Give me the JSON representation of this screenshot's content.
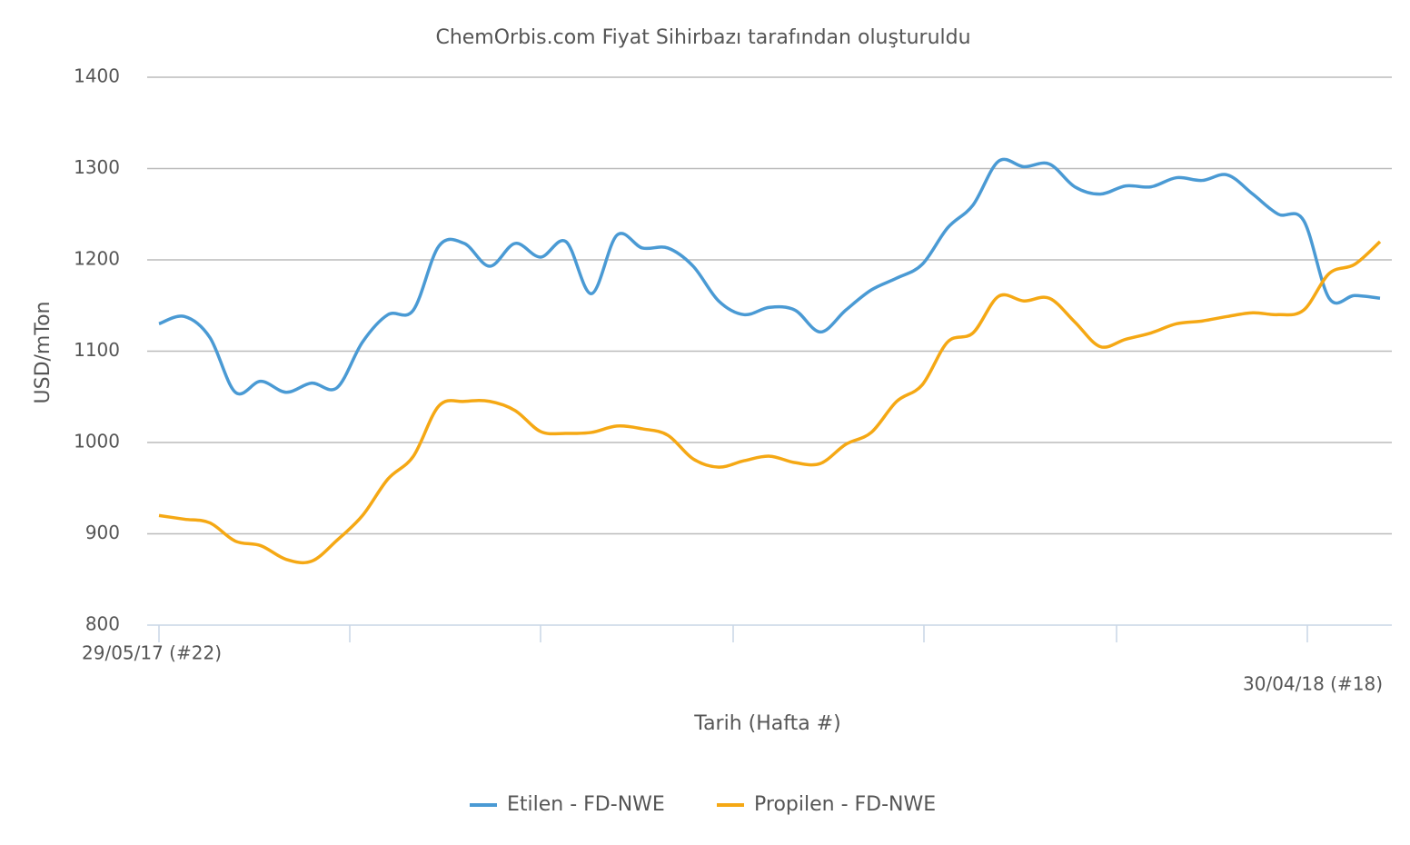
{
  "chart_data": {
    "type": "line",
    "title": "ChemOrbis.com Fiyat Sihirbazı tarafından oluşturuldu",
    "x_label": "Tarih (Hafta #)",
    "y_label": "USD/mTon",
    "categories": [
      "29/05/17 (#22)",
      null,
      null,
      null,
      null,
      null,
      null,
      null,
      null,
      null,
      null,
      null,
      null,
      null,
      null,
      null,
      null,
      null,
      null,
      null,
      null,
      null,
      null,
      null,
      null,
      null,
      null,
      null,
      null,
      null,
      null,
      null,
      null,
      null,
      null,
      null,
      null,
      null,
      null,
      null,
      null,
      null,
      null,
      null,
      null,
      null,
      null,
      null,
      "30/04/18 (#18)"
    ],
    "series": [
      {
        "name": "Etilen - FD-NWE",
        "color": "#4a9ad4",
        "values": [
          1130,
          1138,
          1115,
          1055,
          1067,
          1055,
          1065,
          1060,
          1110,
          1140,
          1145,
          1215,
          1218,
          1193,
          1218,
          1203,
          1220,
          1163,
          1227,
          1213,
          1213,
          1193,
          1155,
          1140,
          1148,
          1145,
          1121,
          1145,
          1167,
          1180,
          1195,
          1235,
          1260,
          1308,
          1302,
          1305,
          1280,
          1272,
          1281,
          1280,
          1290,
          1287,
          1293,
          1272,
          1250,
          1243,
          1158,
          1161,
          1158
        ]
      },
      {
        "name": "Propilen - FD-NWE",
        "color": "#f5a814",
        "values": [
          920,
          916,
          912,
          892,
          887,
          872,
          870,
          893,
          920,
          960,
          985,
          1040,
          1045,
          1045,
          1035,
          1012,
          1010,
          1011,
          1018,
          1015,
          1008,
          982,
          973,
          980,
          985,
          978,
          977,
          998,
          1011,
          1045,
          1063,
          1110,
          1120,
          1160,
          1155,
          1158,
          1132,
          1105,
          1113,
          1120,
          1130,
          1133,
          1138,
          1142,
          1140,
          1145,
          1185,
          1195,
          1220
        ]
      }
    ],
    "ylim": [
      800,
      1400
    ],
    "yticks": [
      800,
      900,
      1000,
      1100,
      1200,
      1300,
      1400
    ],
    "grid": true
  }
}
